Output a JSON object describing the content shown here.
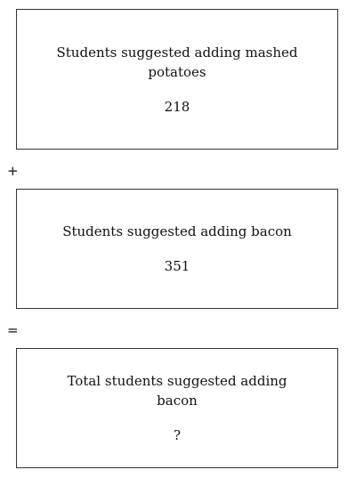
{
  "boxes": [
    {
      "label": "Students suggested adding mashed potatoes",
      "value": "218"
    },
    {
      "label": "Students suggested adding bacon",
      "value": "351"
    },
    {
      "label": "Total students suggested adding bacon",
      "value": "?"
    }
  ],
  "operators": {
    "plus": "+",
    "equals": "="
  }
}
